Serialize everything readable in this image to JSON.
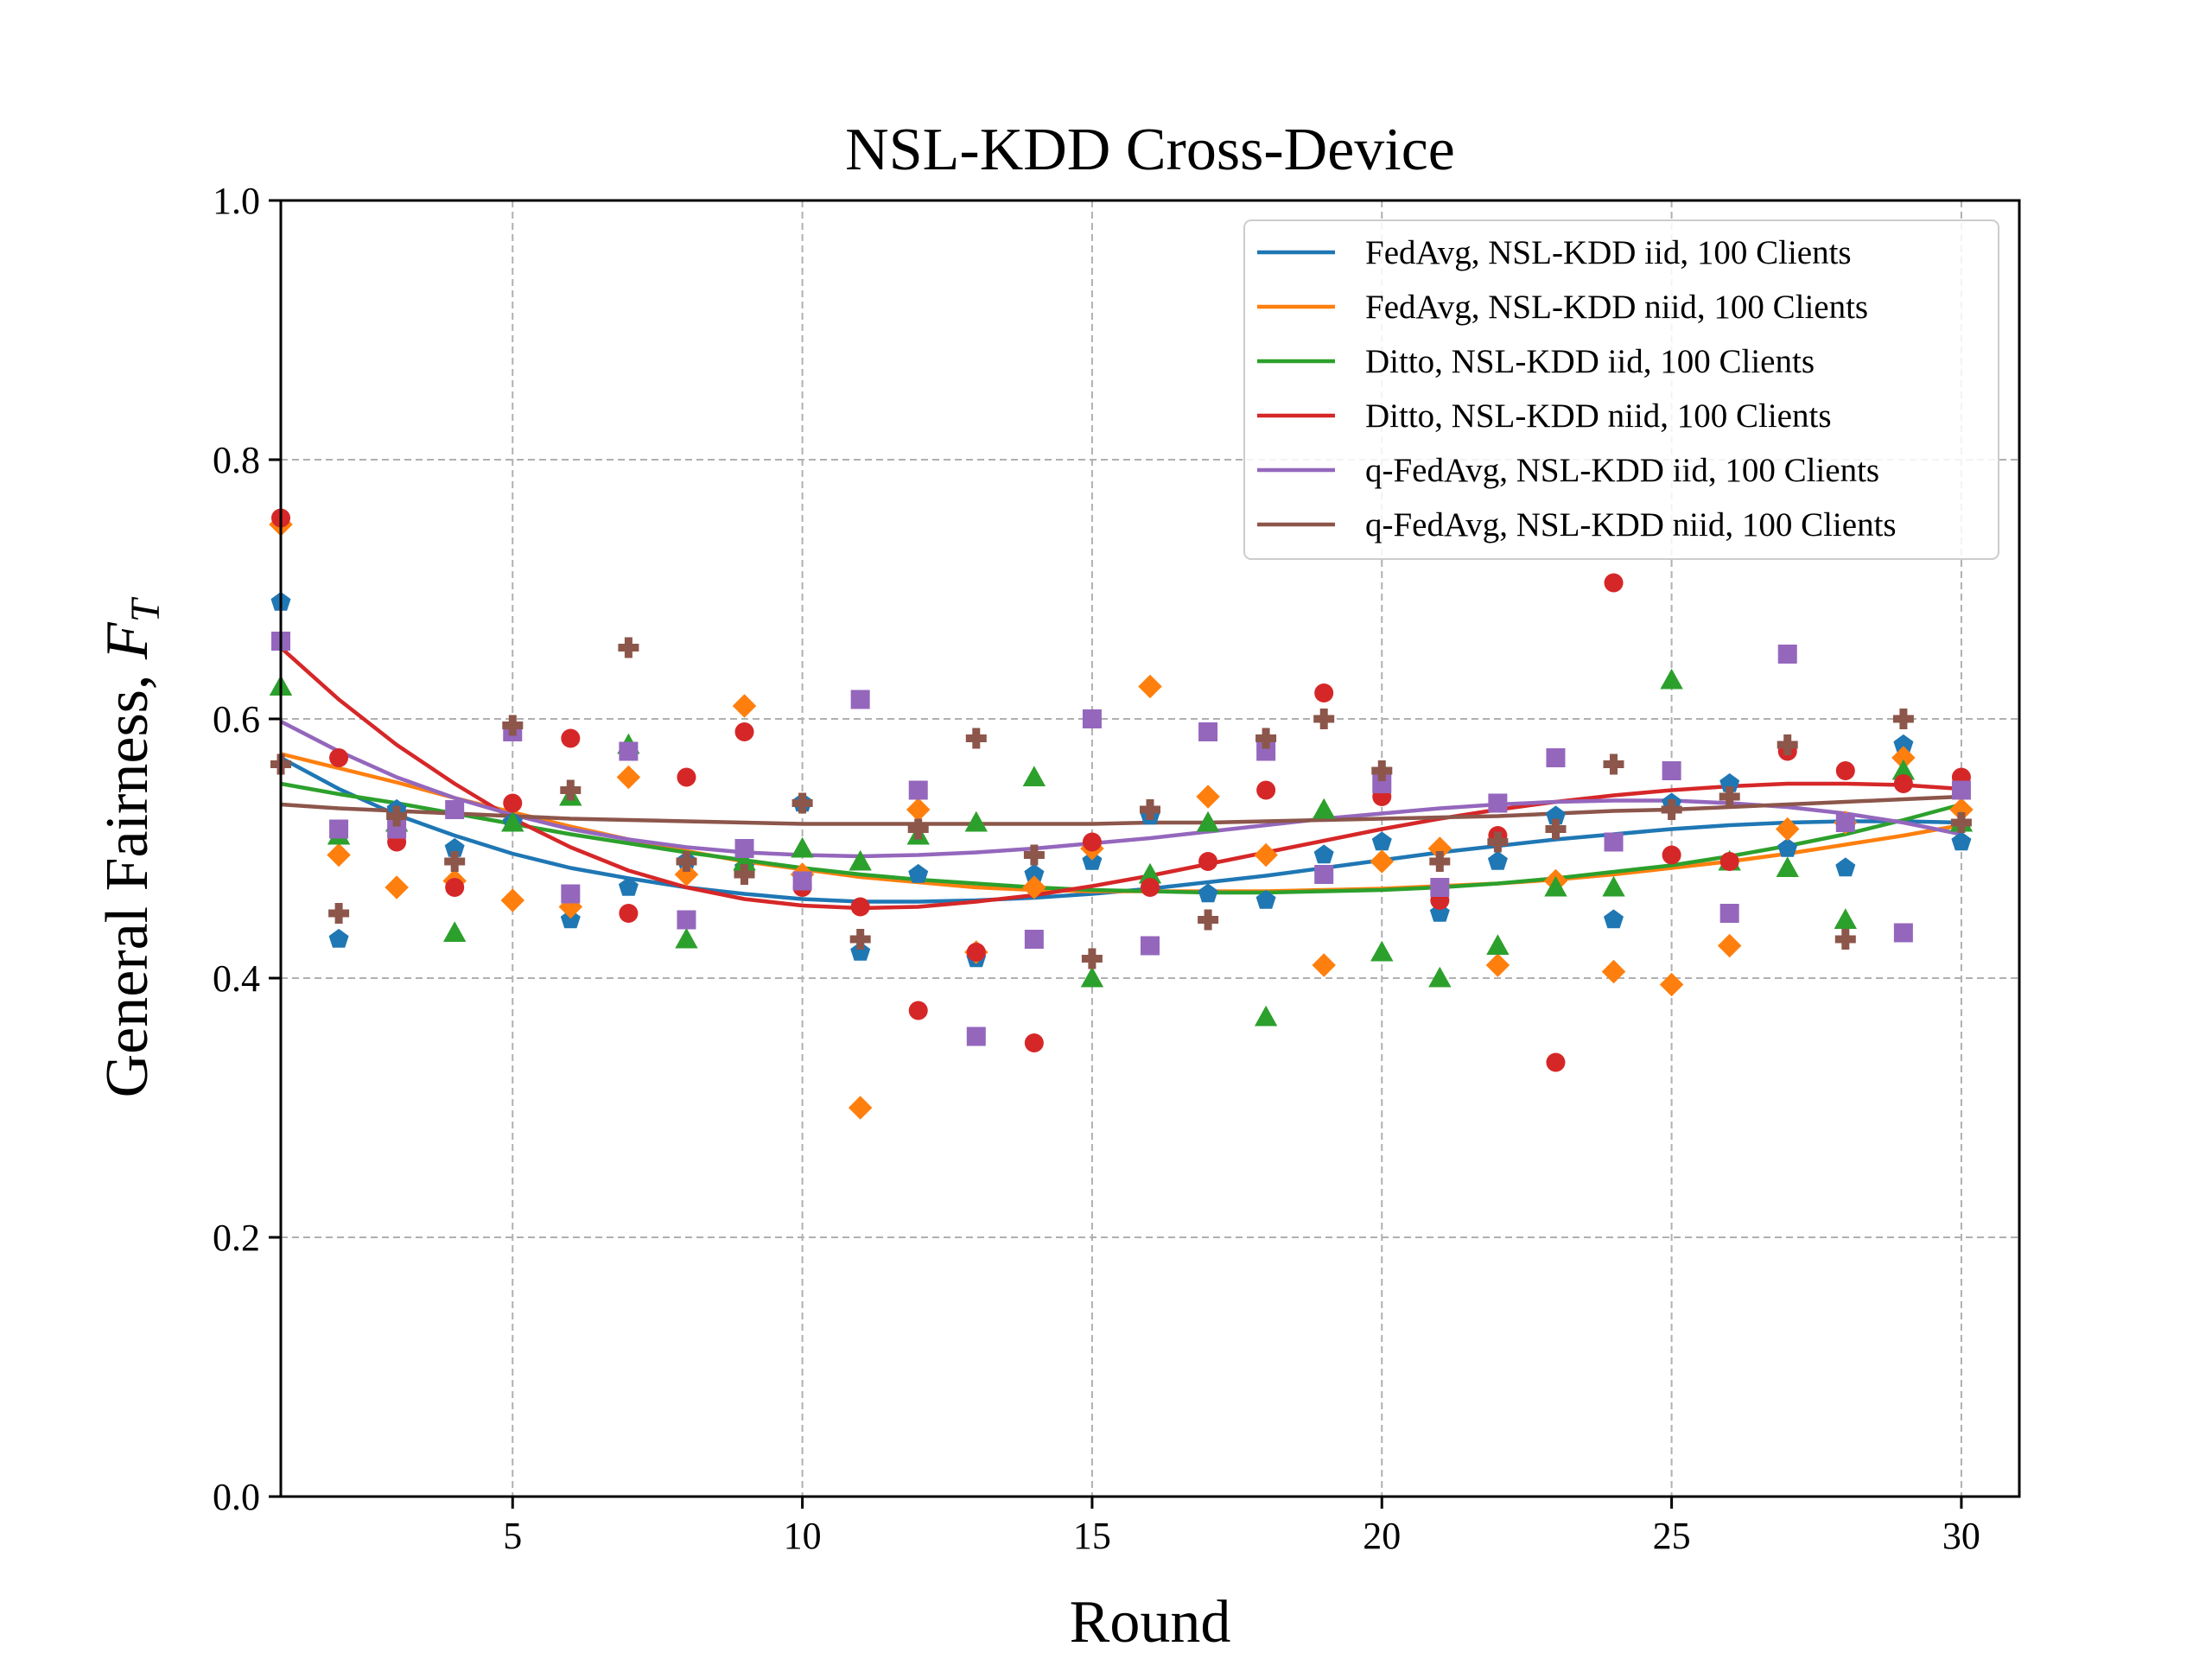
{
  "chart_data": {
    "type": "scatter",
    "title": "NSL-KDD Cross-Device",
    "xlabel": "Round",
    "ylabel": "General Fairness, ",
    "ylabel_symbol": "F",
    "ylabel_subscript": "T",
    "xlim": [
      1,
      31
    ],
    "ylim": [
      0.0,
      1.0
    ],
    "x_ticks": [
      5,
      10,
      15,
      20,
      25,
      30
    ],
    "y_ticks": [
      0.0,
      0.2,
      0.4,
      0.6,
      0.8,
      1.0
    ],
    "y_tick_labels": [
      "0.0",
      "0.2",
      "0.4",
      "0.6",
      "0.8",
      "1.0"
    ],
    "grid": true,
    "legend_position": "top-right",
    "x": [
      1,
      2,
      3,
      4,
      5,
      6,
      7,
      8,
      9,
      10,
      11,
      12,
      13,
      14,
      15,
      16,
      17,
      18,
      19,
      20,
      21,
      22,
      23,
      24,
      25,
      26,
      27,
      28,
      29,
      30
    ],
    "series": [
      {
        "name": "FedAvg, NSL-KDD iid, 100 Clients",
        "color": "#1f77b4",
        "marker": "pentagon",
        "values": [
          0.69,
          0.43,
          0.53,
          0.5,
          0.52,
          0.445,
          0.47,
          0.49,
          0.485,
          0.535,
          0.42,
          0.48,
          0.415,
          0.48,
          0.49,
          0.525,
          0.465,
          0.46,
          0.495,
          0.505,
          0.45,
          0.49,
          0.525,
          0.445,
          0.535,
          0.55,
          0.5,
          0.485,
          0.58,
          0.505
        ],
        "fit": [
          0.57,
          0.546,
          0.526,
          0.51,
          0.496,
          0.485,
          0.477,
          0.47,
          0.465,
          0.461,
          0.459,
          0.459,
          0.46,
          0.462,
          0.465,
          0.469,
          0.474,
          0.479,
          0.485,
          0.491,
          0.497,
          0.502,
          0.507,
          0.511,
          0.515,
          0.518,
          0.52,
          0.521,
          0.521,
          0.52
        ]
      },
      {
        "name": "FedAvg, NSL-KDD niid, 100 Clients",
        "color": "#ff7f0e",
        "marker": "diamond",
        "values": [
          0.75,
          0.495,
          0.47,
          0.475,
          0.46,
          0.455,
          0.555,
          0.48,
          0.61,
          0.48,
          0.3,
          0.53,
          0.42,
          0.47,
          0.5,
          0.625,
          0.54,
          0.495,
          0.41,
          0.49,
          0.5,
          0.41,
          0.475,
          0.405,
          0.395,
          0.425,
          0.515,
          0.52,
          0.57,
          0.53
        ],
        "fit": [
          0.573,
          0.562,
          0.551,
          0.539,
          0.528,
          0.517,
          0.507,
          0.498,
          0.49,
          0.484,
          0.478,
          0.474,
          0.47,
          0.468,
          0.467,
          0.467,
          0.467,
          0.467,
          0.468,
          0.469,
          0.471,
          0.473,
          0.476,
          0.48,
          0.485,
          0.49,
          0.496,
          0.503,
          0.51,
          0.518
        ]
      },
      {
        "name": "Ditto, NSL-KDD iid, 100 Clients",
        "color": "#2ca02c",
        "marker": "triangle",
        "values": [
          0.625,
          0.51,
          0.52,
          0.435,
          0.52,
          0.54,
          0.58,
          0.43,
          0.49,
          0.5,
          0.49,
          0.51,
          0.52,
          0.555,
          0.4,
          0.48,
          0.52,
          0.37,
          0.53,
          0.42,
          0.4,
          0.425,
          0.47,
          0.47,
          0.63,
          0.49,
          0.485,
          0.445,
          0.56,
          0.52
        ],
        "fit": [
          0.55,
          0.542,
          0.535,
          0.527,
          0.519,
          0.511,
          0.504,
          0.497,
          0.491,
          0.485,
          0.48,
          0.476,
          0.473,
          0.47,
          0.468,
          0.467,
          0.466,
          0.466,
          0.467,
          0.468,
          0.47,
          0.473,
          0.477,
          0.482,
          0.487,
          0.494,
          0.502,
          0.511,
          0.522,
          0.534
        ]
      },
      {
        "name": "Ditto, NSL-KDD niid, 100 Clients",
        "color": "#d62728",
        "marker": "circle",
        "values": [
          0.755,
          0.57,
          0.505,
          0.47,
          0.535,
          0.585,
          0.45,
          0.555,
          0.59,
          0.47,
          0.455,
          0.375,
          0.42,
          0.35,
          0.505,
          0.47,
          0.49,
          0.545,
          0.62,
          0.54,
          0.46,
          0.51,
          0.335,
          0.705,
          0.495,
          0.49,
          0.575,
          0.56,
          0.55,
          0.555
        ],
        "fit": [
          0.655,
          0.615,
          0.58,
          0.55,
          0.523,
          0.501,
          0.483,
          0.47,
          0.461,
          0.456,
          0.454,
          0.455,
          0.459,
          0.464,
          0.471,
          0.479,
          0.488,
          0.497,
          0.506,
          0.515,
          0.523,
          0.53,
          0.536,
          0.541,
          0.545,
          0.548,
          0.55,
          0.55,
          0.549,
          0.546
        ]
      },
      {
        "name": "q-FedAvg, NSL-KDD iid, 100 Clients",
        "color": "#9467bd",
        "marker": "square",
        "values": [
          0.66,
          0.515,
          0.515,
          0.53,
          0.59,
          0.465,
          0.575,
          0.445,
          0.5,
          0.475,
          0.615,
          0.545,
          0.355,
          0.43,
          0.6,
          0.425,
          0.59,
          0.575,
          0.48,
          0.55,
          0.47,
          0.535,
          0.57,
          0.505,
          0.56,
          0.45,
          0.65,
          0.52,
          0.435,
          0.545
        ],
        "fit": [
          0.598,
          0.575,
          0.555,
          0.539,
          0.526,
          0.515,
          0.507,
          0.501,
          0.497,
          0.495,
          0.494,
          0.495,
          0.497,
          0.5,
          0.504,
          0.508,
          0.513,
          0.518,
          0.523,
          0.527,
          0.531,
          0.534,
          0.536,
          0.537,
          0.537,
          0.535,
          0.532,
          0.527,
          0.52,
          0.511
        ]
      },
      {
        "name": "q-FedAvg, NSL-KDD niid, 100 Clients",
        "color": "#8c564b",
        "marker": "plus",
        "values": [
          0.565,
          0.45,
          0.525,
          0.49,
          0.595,
          0.545,
          0.655,
          0.49,
          0.48,
          0.535,
          0.43,
          0.515,
          0.585,
          0.495,
          0.415,
          0.53,
          0.445,
          0.585,
          0.6,
          0.56,
          0.49,
          0.505,
          0.515,
          0.565,
          0.53,
          0.54,
          0.58,
          0.43,
          0.6,
          0.52
        ],
        "fit": [
          0.534,
          0.531,
          0.529,
          0.527,
          0.525,
          0.523,
          0.522,
          0.521,
          0.52,
          0.519,
          0.519,
          0.519,
          0.519,
          0.519,
          0.519,
          0.52,
          0.52,
          0.521,
          0.522,
          0.523,
          0.524,
          0.525,
          0.527,
          0.529,
          0.53,
          0.532,
          0.534,
          0.536,
          0.538,
          0.54
        ]
      }
    ]
  }
}
